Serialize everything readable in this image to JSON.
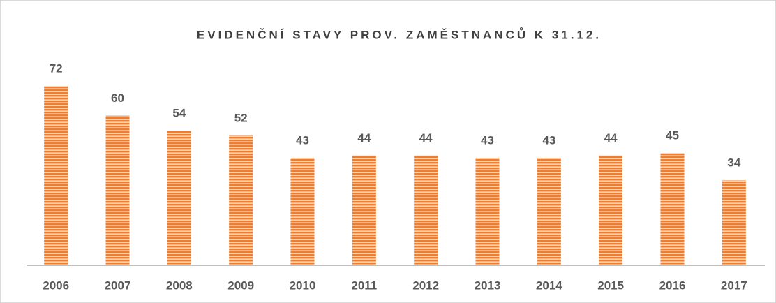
{
  "chart_data": {
    "type": "bar",
    "title": "EVIDENČNÍ STAVY PROV. ZAMĚSTNANCŮ K 31.12.",
    "categories": [
      "2006",
      "2007",
      "2008",
      "2009",
      "2010",
      "2011",
      "2012",
      "2013",
      "2014",
      "2015",
      "2016",
      "2017"
    ],
    "values": [
      72,
      60,
      54,
      52,
      43,
      44,
      44,
      43,
      43,
      44,
      45,
      34
    ],
    "color": "#ed7d31"
  }
}
